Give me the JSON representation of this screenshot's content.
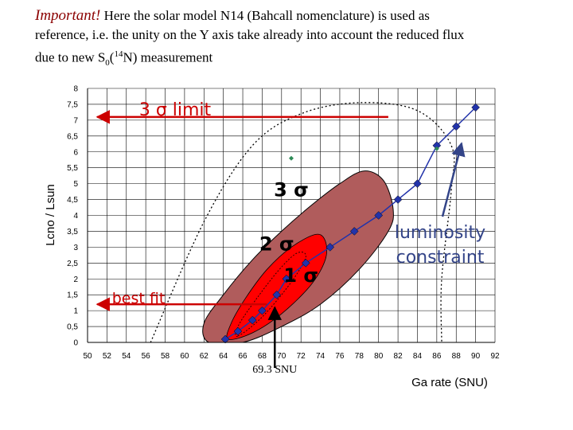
{
  "header": {
    "important": "Important!",
    "line1_rest": " Here the solar model N14  (Bahcall nomenclature) is used as",
    "line2": "reference, i.e. the unity on the Y axis take already into account the reduced flux",
    "line3_pre": "due to new S",
    "line3_sub": "0",
    "line3_paren": "(",
    "line3_sup": "14",
    "line3_post": "N) measurement"
  },
  "chart_data": {
    "type": "scatter",
    "xlabel": "Ga rate (SNU)",
    "ylabel": "Lcno / Lsun",
    "xlim": [
      50,
      92
    ],
    "ylim": [
      0,
      8
    ],
    "x_ticks": [
      50,
      52,
      54,
      56,
      58,
      60,
      62,
      64,
      66,
      68,
      70,
      72,
      74,
      76,
      78,
      80,
      82,
      84,
      86,
      88,
      90,
      92
    ],
    "y_ticks": [
      0,
      0.5,
      1,
      1.5,
      2,
      2.5,
      3,
      3.5,
      4,
      4.5,
      5,
      5.5,
      6,
      6.5,
      7,
      7.5,
      8
    ],
    "x_tick_labels": [
      "50",
      "52",
      "54",
      "56",
      "58",
      "60",
      "62",
      "64",
      "66",
      "68",
      "70",
      "72",
      "74",
      "76",
      "78",
      "80",
      "82",
      "84",
      "86",
      "88",
      "90",
      "92"
    ],
    "y_tick_labels": [
      "0",
      "0,5",
      "1",
      "1,5",
      "2",
      "2,5",
      "3",
      "3,5",
      "4",
      "4,5",
      "5",
      "5,5",
      "6",
      "6,5",
      "7",
      "7,5",
      "8"
    ],
    "series": [
      {
        "points": [
          [
            64.2,
            0.1
          ],
          [
            65.5,
            0.35
          ],
          [
            67,
            0.7
          ],
          [
            68,
            1.0
          ],
          [
            69.5,
            1.5
          ],
          [
            70.5,
            2.0
          ],
          [
            72.5,
            2.5
          ],
          [
            75,
            3.0
          ],
          [
            77.5,
            3.5
          ],
          [
            80,
            4.0
          ],
          [
            82,
            4.5
          ],
          [
            84,
            5.0
          ],
          [
            86,
            6.2
          ],
          [
            88,
            6.8
          ],
          [
            90,
            7.4
          ]
        ],
        "color": "#2233aa"
      }
    ],
    "contours": {
      "sigma3": {
        "color": "#b05c5c",
        "points": [
          [
            62.5,
            0
          ],
          [
            66,
            0
          ],
          [
            70,
            0.5
          ],
          [
            74,
            1.2
          ],
          [
            78,
            2.3
          ],
          [
            81,
            3.5
          ],
          [
            81.5,
            4.2
          ],
          [
            80.5,
            5.1
          ],
          [
            78.5,
            5.4
          ],
          [
            76,
            5.0
          ],
          [
            73,
            4.3
          ],
          [
            70,
            3.5
          ],
          [
            67,
            2.6
          ],
          [
            64,
            1.5
          ],
          [
            62,
            0.6
          ]
        ]
      },
      "sigma2": {
        "color": "#ff0000",
        "points": [
          [
            64.5,
            0.1
          ],
          [
            67,
            0.3
          ],
          [
            70,
            0.9
          ],
          [
            73,
            1.8
          ],
          [
            74.5,
            2.6
          ],
          [
            74.5,
            3.2
          ],
          [
            73.5,
            3.4
          ],
          [
            71,
            3.0
          ],
          [
            68.5,
            2.3
          ],
          [
            66.3,
            1.4
          ],
          [
            64.8,
            0.6
          ]
        ]
      },
      "sigma1": {
        "color": "#ff0000",
        "points": [
          [
            65.5,
            0.2
          ],
          [
            68,
            0.8
          ],
          [
            71,
            1.9
          ],
          [
            72.5,
            2.7
          ],
          [
            71.5,
            2.8
          ],
          [
            69.5,
            2.2
          ],
          [
            67,
            1.2
          ],
          [
            65.5,
            0.5
          ]
        ]
      },
      "luminosity": {
        "color": "#000000",
        "points": [
          [
            56.5,
            0
          ],
          [
            62,
            3.8
          ],
          [
            67,
            6.2
          ],
          [
            72,
            7.2
          ],
          [
            78,
            7.55
          ],
          [
            84,
            7.3
          ],
          [
            87.5,
            6.2
          ],
          [
            87.5,
            4.8
          ],
          [
            86.5,
            2.0
          ],
          [
            86.5,
            0
          ]
        ]
      }
    },
    "green_points": [
      [
        71,
        5.8
      ],
      [
        86,
        6.1
      ]
    ],
    "annotations": {
      "limit_3sigma": {
        "text": "3 σ limit",
        "y": 7.1,
        "x_start": 51,
        "x_end": 81
      },
      "best_fit": {
        "text": "best fit",
        "y": 1.2,
        "x_start": 51,
        "x_end": 68.5
      },
      "snu_marker": {
        "text": "69.3 SNU",
        "x": 69.3,
        "y_top": 1.1
      },
      "sigma3_label": {
        "text": "3 σ",
        "x": 71,
        "y": 4.6
      },
      "sigma2_label": {
        "text": "2 σ",
        "x": 69.5,
        "y": 2.9
      },
      "sigma1_label": {
        "text": "1 σ",
        "x": 72,
        "y": 1.9
      },
      "luminosity_label": {
        "line1": "luminosity",
        "line2": "constraint"
      }
    }
  }
}
